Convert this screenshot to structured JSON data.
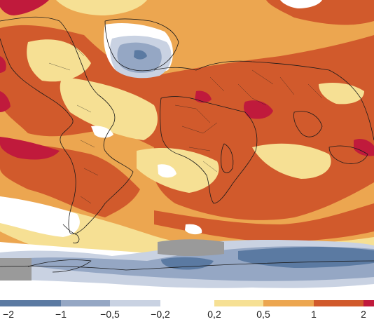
{
  "legend": {
    "segments": [
      {
        "from": -2.0,
        "to": -1.0,
        "color": "#5b7aa2"
      },
      {
        "from": -1.0,
        "to": -0.5,
        "color": "#95a7c4"
      },
      {
        "from": -0.5,
        "to": -0.2,
        "color": "#c9d2e2"
      },
      {
        "from": -0.2,
        "to": 0.2,
        "color": "#ffffff"
      },
      {
        "from": 0.2,
        "to": 0.5,
        "color": "#f6e094"
      },
      {
        "from": 0.5,
        "to": 1.0,
        "color": "#eca650"
      },
      {
        "from": 1.0,
        "to": 2.0,
        "color": "#d15a2c"
      },
      {
        "from": 2.0,
        "to": 2.2,
        "color": "#c01a3c"
      }
    ],
    "ticks": [
      "-2",
      "-1",
      "-0,5",
      "-0,2",
      "0,2",
      "0,5",
      "1",
      "2"
    ]
  },
  "colors": {
    "strong_cooling": "#5b7aa2",
    "cooling": "#95a7c4",
    "slight_cooling": "#c9d2e2",
    "neutral": "#ffffff",
    "slight_warming": "#f6e094",
    "warming": "#eca650",
    "strong_warming": "#d15a2c",
    "extreme_warming": "#c01a3c",
    "coastline": "#1a1a1a",
    "no_data": "#9a9a9a"
  }
}
